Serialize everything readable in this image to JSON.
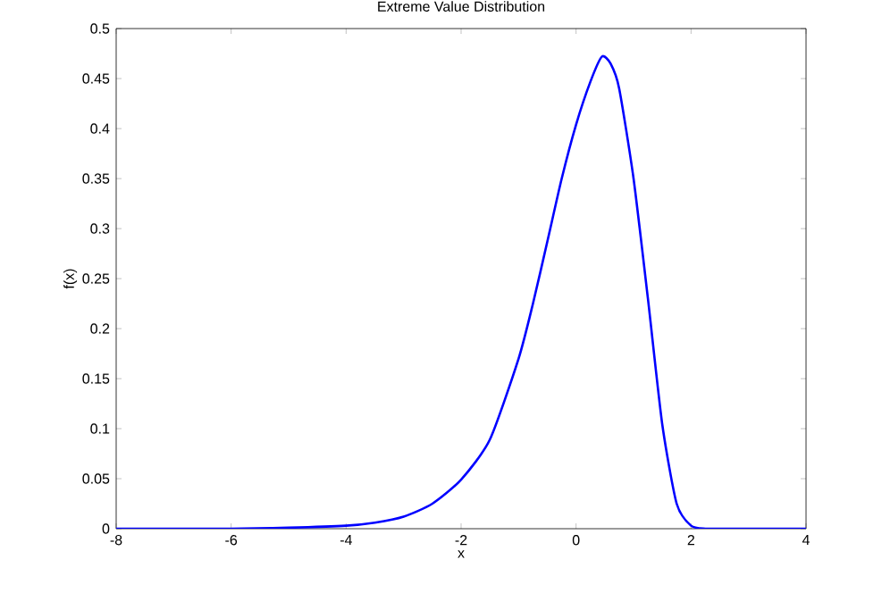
{
  "chart_data": {
    "type": "line",
    "title": "Extreme Value Distribution",
    "xlabel": "x",
    "ylabel": "f(x)",
    "xlim": [
      -8,
      4
    ],
    "xticks": [
      -8,
      -6,
      -4,
      -2,
      0,
      2,
      4
    ],
    "ylim": [
      0,
      0.5
    ],
    "yticks": [
      0,
      0.05,
      0.1,
      0.15,
      0.2,
      0.25,
      0.3,
      0.35,
      0.4,
      0.45,
      0.5
    ],
    "grid": false,
    "marker": "none",
    "line_style": "solid",
    "series": [
      {
        "color": "#0000ff",
        "x": [
          -8,
          -6,
          -5,
          -4,
          -3.5,
          -3,
          -2.5,
          -2,
          -1.5,
          -1,
          -0.75,
          -0.5,
          -0.25,
          0,
          0.25,
          0.45,
          0.6,
          0.75,
          1,
          1.25,
          1.5,
          1.75,
          2,
          2.25,
          2.5,
          4
        ],
        "values": [
          0,
          0,
          0.001,
          0.003,
          0.006,
          0.012,
          0.025,
          0.049,
          0.089,
          0.17,
          0.225,
          0.287,
          0.35,
          0.404,
          0.447,
          0.472,
          0.465,
          0.44,
          0.35,
          0.23,
          0.104,
          0.025,
          0.003,
          0,
          0,
          0
        ]
      }
    ]
  }
}
